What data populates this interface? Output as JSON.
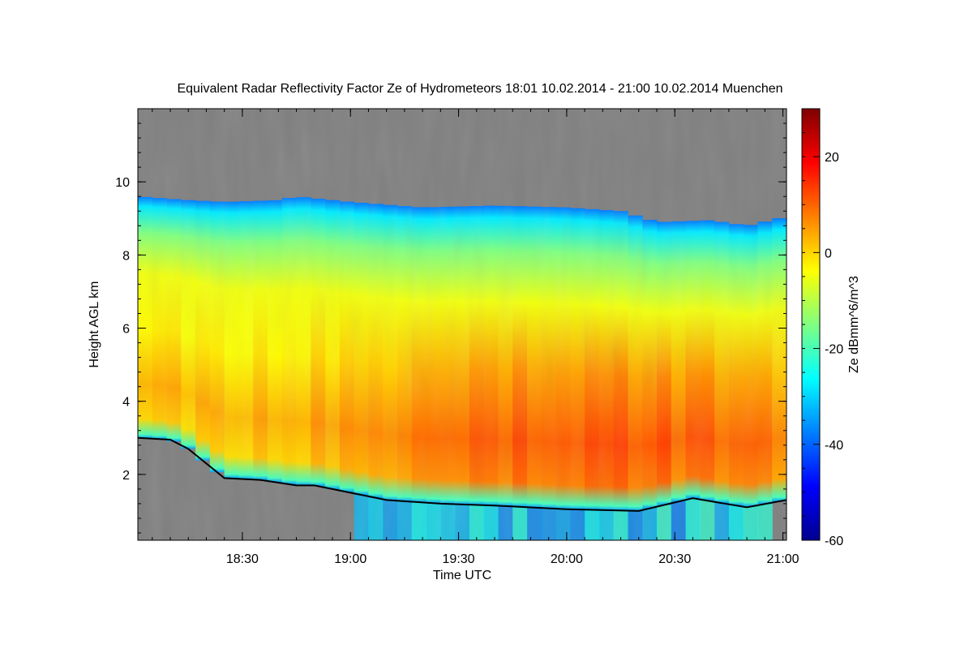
{
  "chart_data": {
    "type": "heatmap",
    "title": "Equivalent Radar Reflectivity Factor Ze of Hydrometeors   18:01 10.02.2014 - 21:00 10.02.2014 Muenchen",
    "xlabel": "Time UTC",
    "ylabel": "Height AGL km",
    "x_range_minutes_utc": [
      1081,
      1261
    ],
    "y_range_km": [
      0.2,
      12.0
    ],
    "x_ticks": [
      {
        "minutes": 1110,
        "label": "18:30"
      },
      {
        "minutes": 1140,
        "label": "19:00"
      },
      {
        "minutes": 1170,
        "label": "19:30"
      },
      {
        "minutes": 1200,
        "label": "20:00"
      },
      {
        "minutes": 1230,
        "label": "20:30"
      },
      {
        "minutes": 1260,
        "label": "21:00"
      }
    ],
    "y_ticks": [
      {
        "value": 2,
        "label": "2"
      },
      {
        "value": 4,
        "label": "4"
      },
      {
        "value": 6,
        "label": "6"
      },
      {
        "value": 8,
        "label": "8"
      },
      {
        "value": 10,
        "label": "10"
      }
    ],
    "colorbar": {
      "label": "Ze dBmm^6/m^3",
      "range": [
        -60,
        30
      ],
      "ticks": [
        {
          "value": -60,
          "label": "-60"
        },
        {
          "value": -40,
          "label": "-40"
        },
        {
          "value": -20,
          "label": "-20"
        },
        {
          "value": 0,
          "label": "0"
        },
        {
          "value": 20,
          "label": "20"
        }
      ],
      "colors": [
        "#00008f",
        "#0000ff",
        "#0080ff",
        "#00ffff",
        "#80ff80",
        "#ffff00",
        "#ff8000",
        "#ff0000",
        "#800000"
      ]
    },
    "no_data_color": "#808080",
    "cloud_top_km": [
      {
        "t": 1081,
        "h": 9.6
      },
      {
        "t": 1095,
        "h": 9.5
      },
      {
        "t": 1105,
        "h": 9.45
      },
      {
        "t": 1120,
        "h": 9.5
      },
      {
        "t": 1125,
        "h": 9.6
      },
      {
        "t": 1140,
        "h": 9.45
      },
      {
        "t": 1160,
        "h": 9.3
      },
      {
        "t": 1180,
        "h": 9.35
      },
      {
        "t": 1200,
        "h": 9.3
      },
      {
        "t": 1215,
        "h": 9.2
      },
      {
        "t": 1225,
        "h": 8.9
      },
      {
        "t": 1240,
        "h": 8.95
      },
      {
        "t": 1250,
        "h": 8.8
      },
      {
        "t": 1261,
        "h": 9.05
      }
    ],
    "melting_layer_km": [
      {
        "t": 1081,
        "h": 3.0
      },
      {
        "t": 1090,
        "h": 2.95
      },
      {
        "t": 1095,
        "h": 2.7
      },
      {
        "t": 1100,
        "h": 2.3
      },
      {
        "t": 1105,
        "h": 1.9
      },
      {
        "t": 1115,
        "h": 1.85
      },
      {
        "t": 1125,
        "h": 1.7
      },
      {
        "t": 1130,
        "h": 1.7
      },
      {
        "t": 1140,
        "h": 1.5
      },
      {
        "t": 1150,
        "h": 1.3
      },
      {
        "t": 1165,
        "h": 1.2
      },
      {
        "t": 1180,
        "h": 1.15
      },
      {
        "t": 1200,
        "h": 1.05
      },
      {
        "t": 1220,
        "h": 1.0
      },
      {
        "t": 1235,
        "h": 1.35
      },
      {
        "t": 1250,
        "h": 1.1
      },
      {
        "t": 1261,
        "h": 1.3
      }
    ],
    "reflectivity_core": {
      "description": "maximum Ze band of roughly +10 dBZ between 2 and 4 km from 19:00 to 20:50",
      "peak_dbz": 12,
      "peak_height_km": 2.8,
      "peak_time_minutes": 1205
    }
  }
}
